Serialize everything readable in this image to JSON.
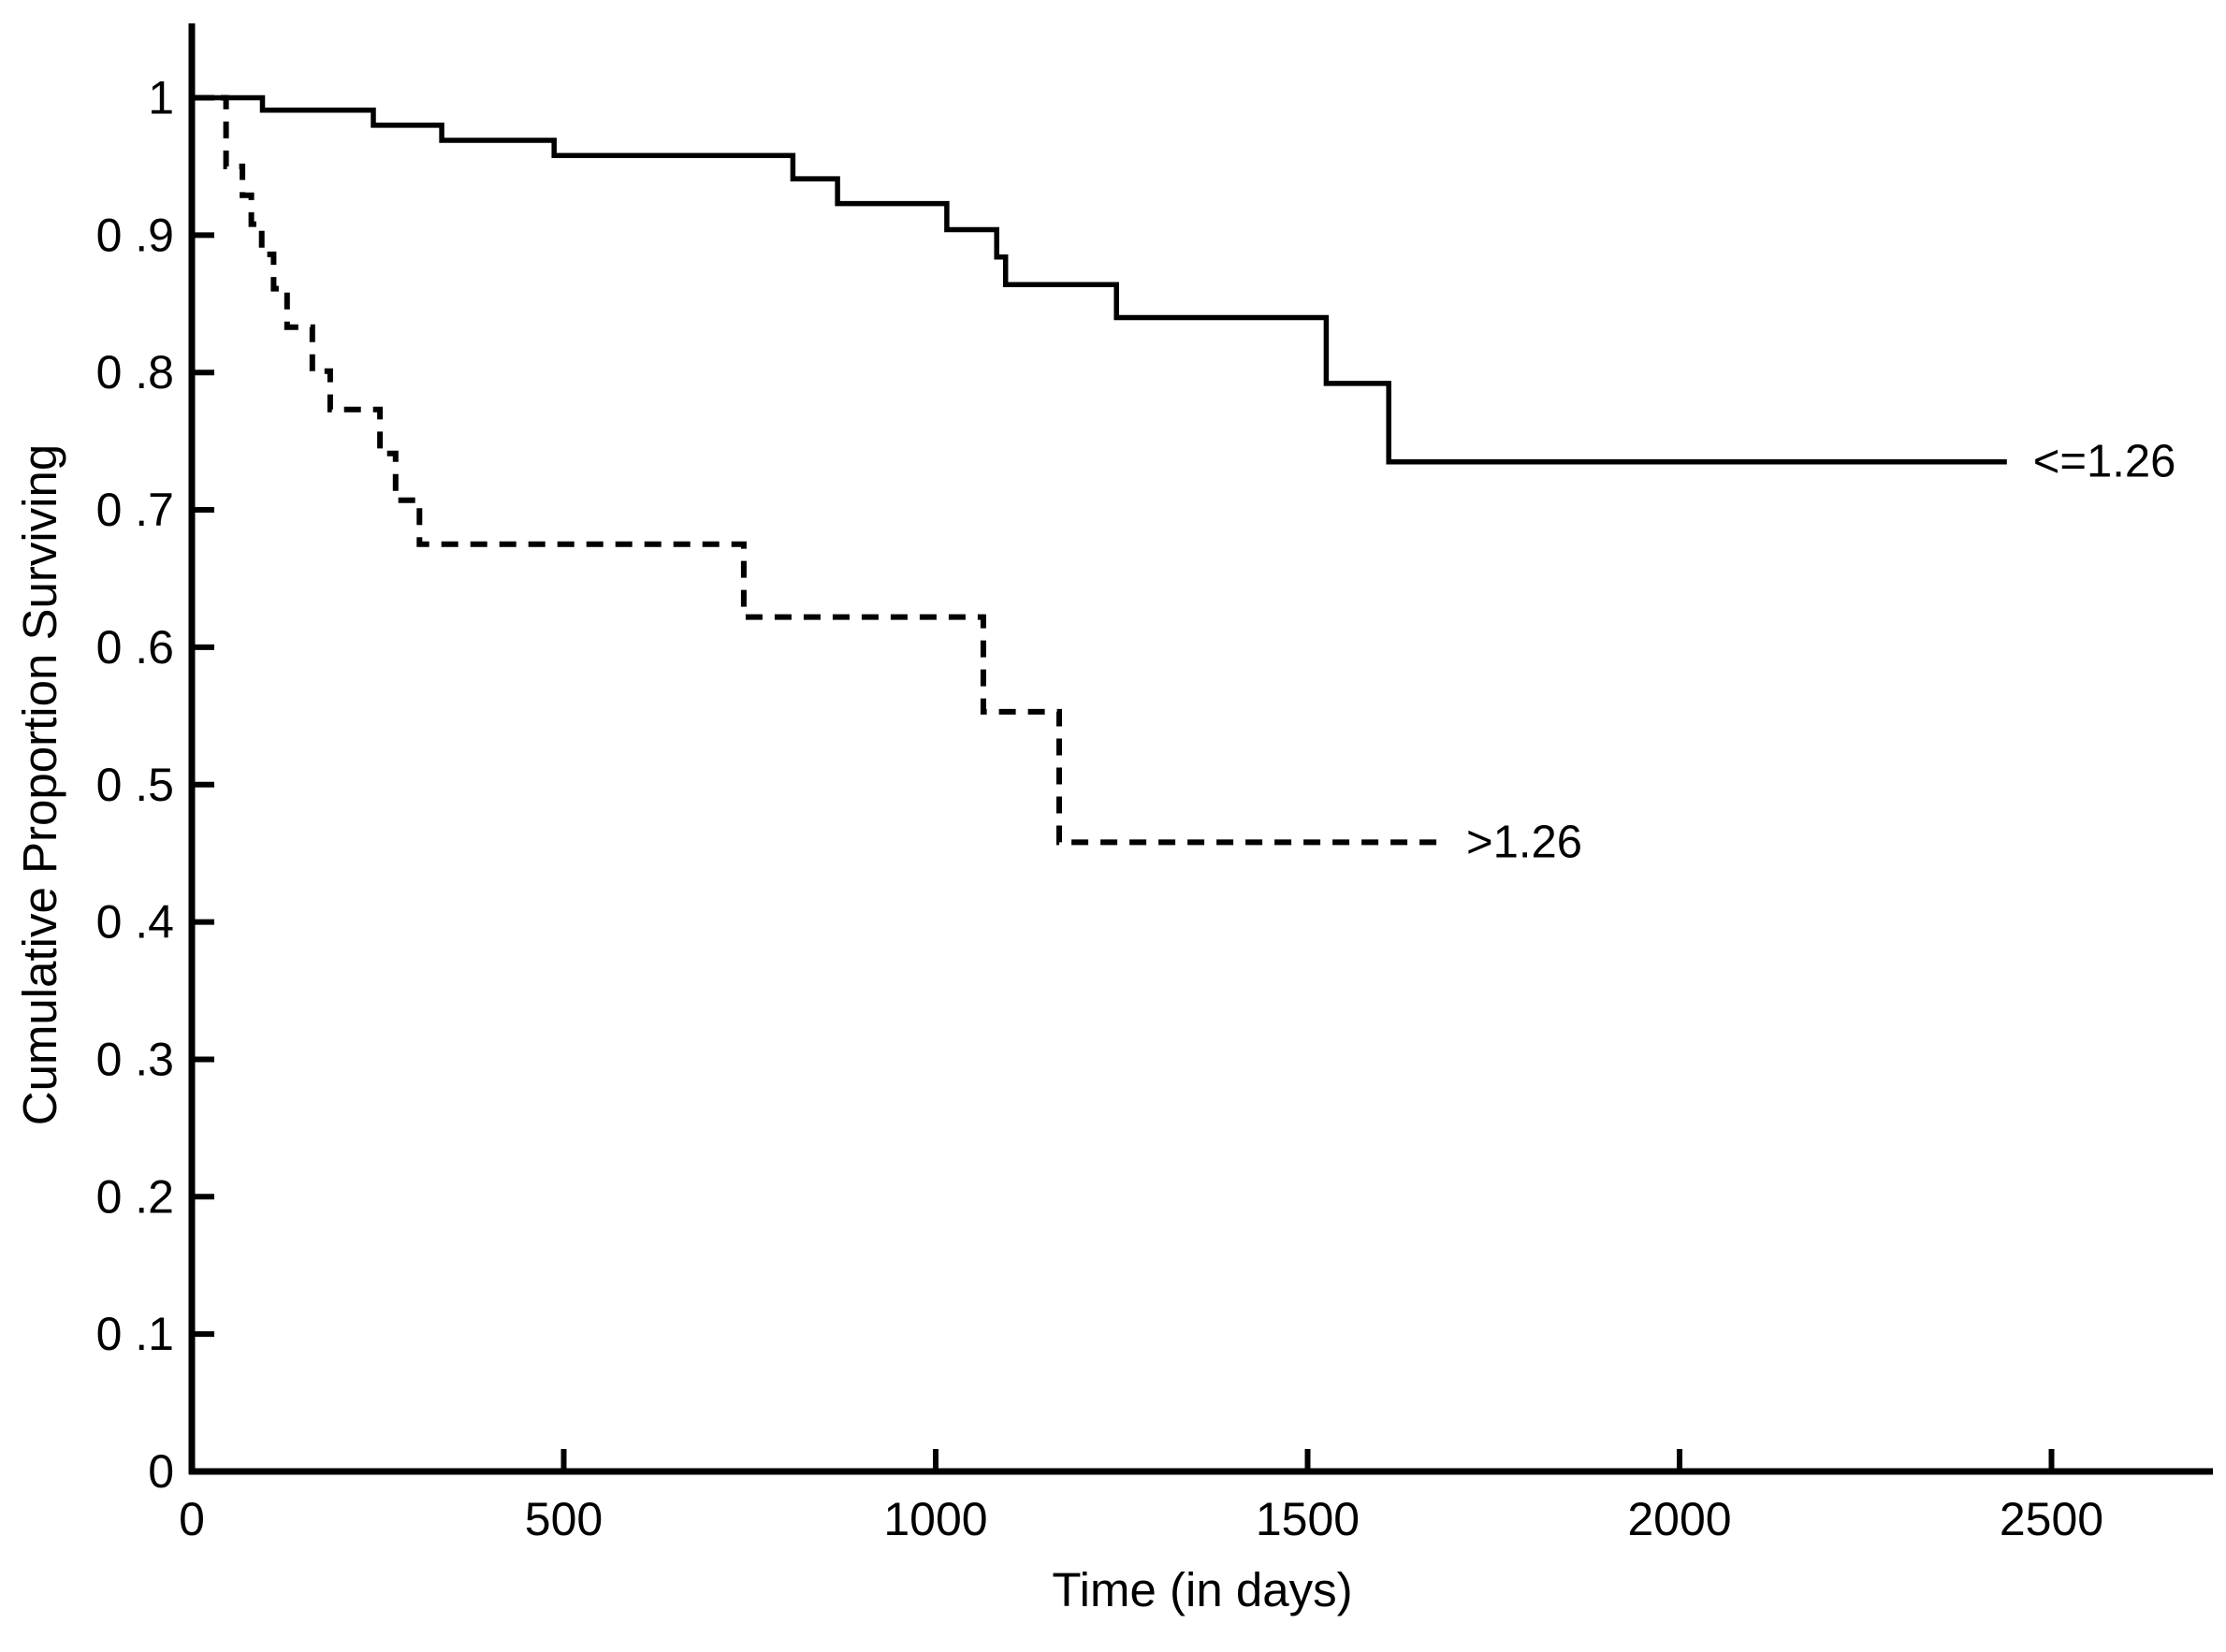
{
  "chart_data": {
    "type": "line",
    "subtype": "kaplan-meier-step-survival",
    "title": "",
    "xlabel": "Time (in days)",
    "ylabel": "Cumulative Proportion Surviving",
    "xlim": [
      0,
      2718
    ],
    "ylim": [
      0,
      1
    ],
    "grid": false,
    "background_color": "#ffffff",
    "line_color": "#000000",
    "legend_position": "end-of-line-labels",
    "x_ticks": [
      {
        "value": 0,
        "label": "0"
      },
      {
        "value": 500,
        "label": "500"
      },
      {
        "value": 1000,
        "label": "1000"
      },
      {
        "value": 1500,
        "label": "1500"
      },
      {
        "value": 2000,
        "label": "2000"
      },
      {
        "value": 2500,
        "label": "2500"
      }
    ],
    "y_ticks": [
      {
        "value": 1.0,
        "label": "1"
      },
      {
        "value": 0.9,
        "label": "0 .9"
      },
      {
        "value": 0.8,
        "label": "0 .8"
      },
      {
        "value": 0.7,
        "label": "0 .7"
      },
      {
        "value": 0.6,
        "label": "0 .6"
      },
      {
        "value": 0.5,
        "label": "0 .5"
      },
      {
        "value": 0.4,
        "label": "0 .4"
      },
      {
        "value": 0.3,
        "label": "0 .3"
      },
      {
        "value": 0.2,
        "label": "0 .2"
      },
      {
        "value": 0.1,
        "label": "0 .1"
      },
      {
        "value": 0.0,
        "label": "0"
      }
    ],
    "series": [
      {
        "name": "ratio <= 1.26",
        "label": "<=1.26",
        "line_style": "solid",
        "steps": [
          [
            0,
            1.0
          ],
          [
            95,
            0.991
          ],
          [
            244,
            0.98
          ],
          [
            336,
            0.969
          ],
          [
            487,
            0.958
          ],
          [
            808,
            0.941
          ],
          [
            868,
            0.923
          ],
          [
            1015,
            0.904
          ],
          [
            1082,
            0.884
          ],
          [
            1094,
            0.864
          ],
          [
            1243,
            0.84
          ],
          [
            1525,
            0.792
          ],
          [
            1609,
            0.735
          ]
        ],
        "end_time": 2440
      },
      {
        "name": "ratio > 1.26",
        "label": ">1.26",
        "line_style": "dashed",
        "steps": [
          [
            0,
            1.0
          ],
          [
            46,
            0.95
          ],
          [
            68,
            0.929
          ],
          [
            80,
            0.908
          ],
          [
            94,
            0.886
          ],
          [
            110,
            0.861
          ],
          [
            128,
            0.833
          ],
          [
            162,
            0.801
          ],
          [
            186,
            0.773
          ],
          [
            253,
            0.741
          ],
          [
            274,
            0.707
          ],
          [
            306,
            0.675
          ],
          [
            742,
            0.622
          ],
          [
            1064,
            0.553
          ],
          [
            1166,
            0.458
          ]
        ],
        "end_time": 1678
      }
    ]
  }
}
